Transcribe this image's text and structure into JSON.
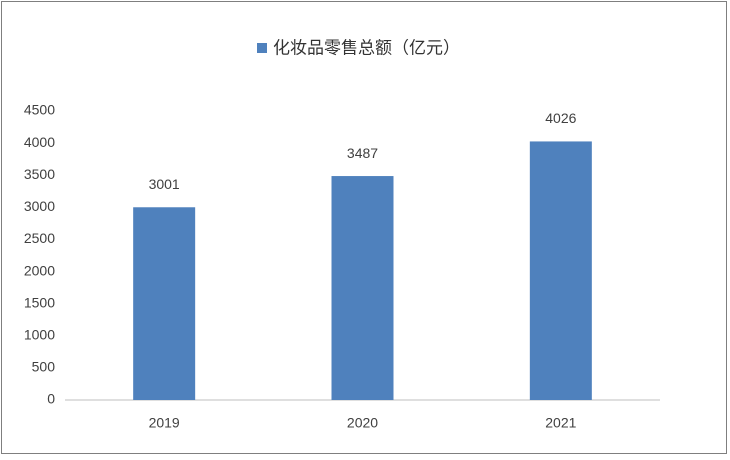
{
  "chart_data": {
    "type": "bar",
    "categories": [
      "2019",
      "2020",
      "2021"
    ],
    "series": [
      {
        "name": "化妆品零售总额（亿元）",
        "color": "#4f81bd",
        "values": [
          3001,
          3487,
          4026
        ]
      }
    ],
    "ylim": [
      0,
      4500
    ],
    "yticks": [
      0,
      500,
      1000,
      1500,
      2000,
      2500,
      3000,
      3500,
      4000,
      4500
    ],
    "grid": false,
    "legend": "top",
    "data_labels": true
  }
}
